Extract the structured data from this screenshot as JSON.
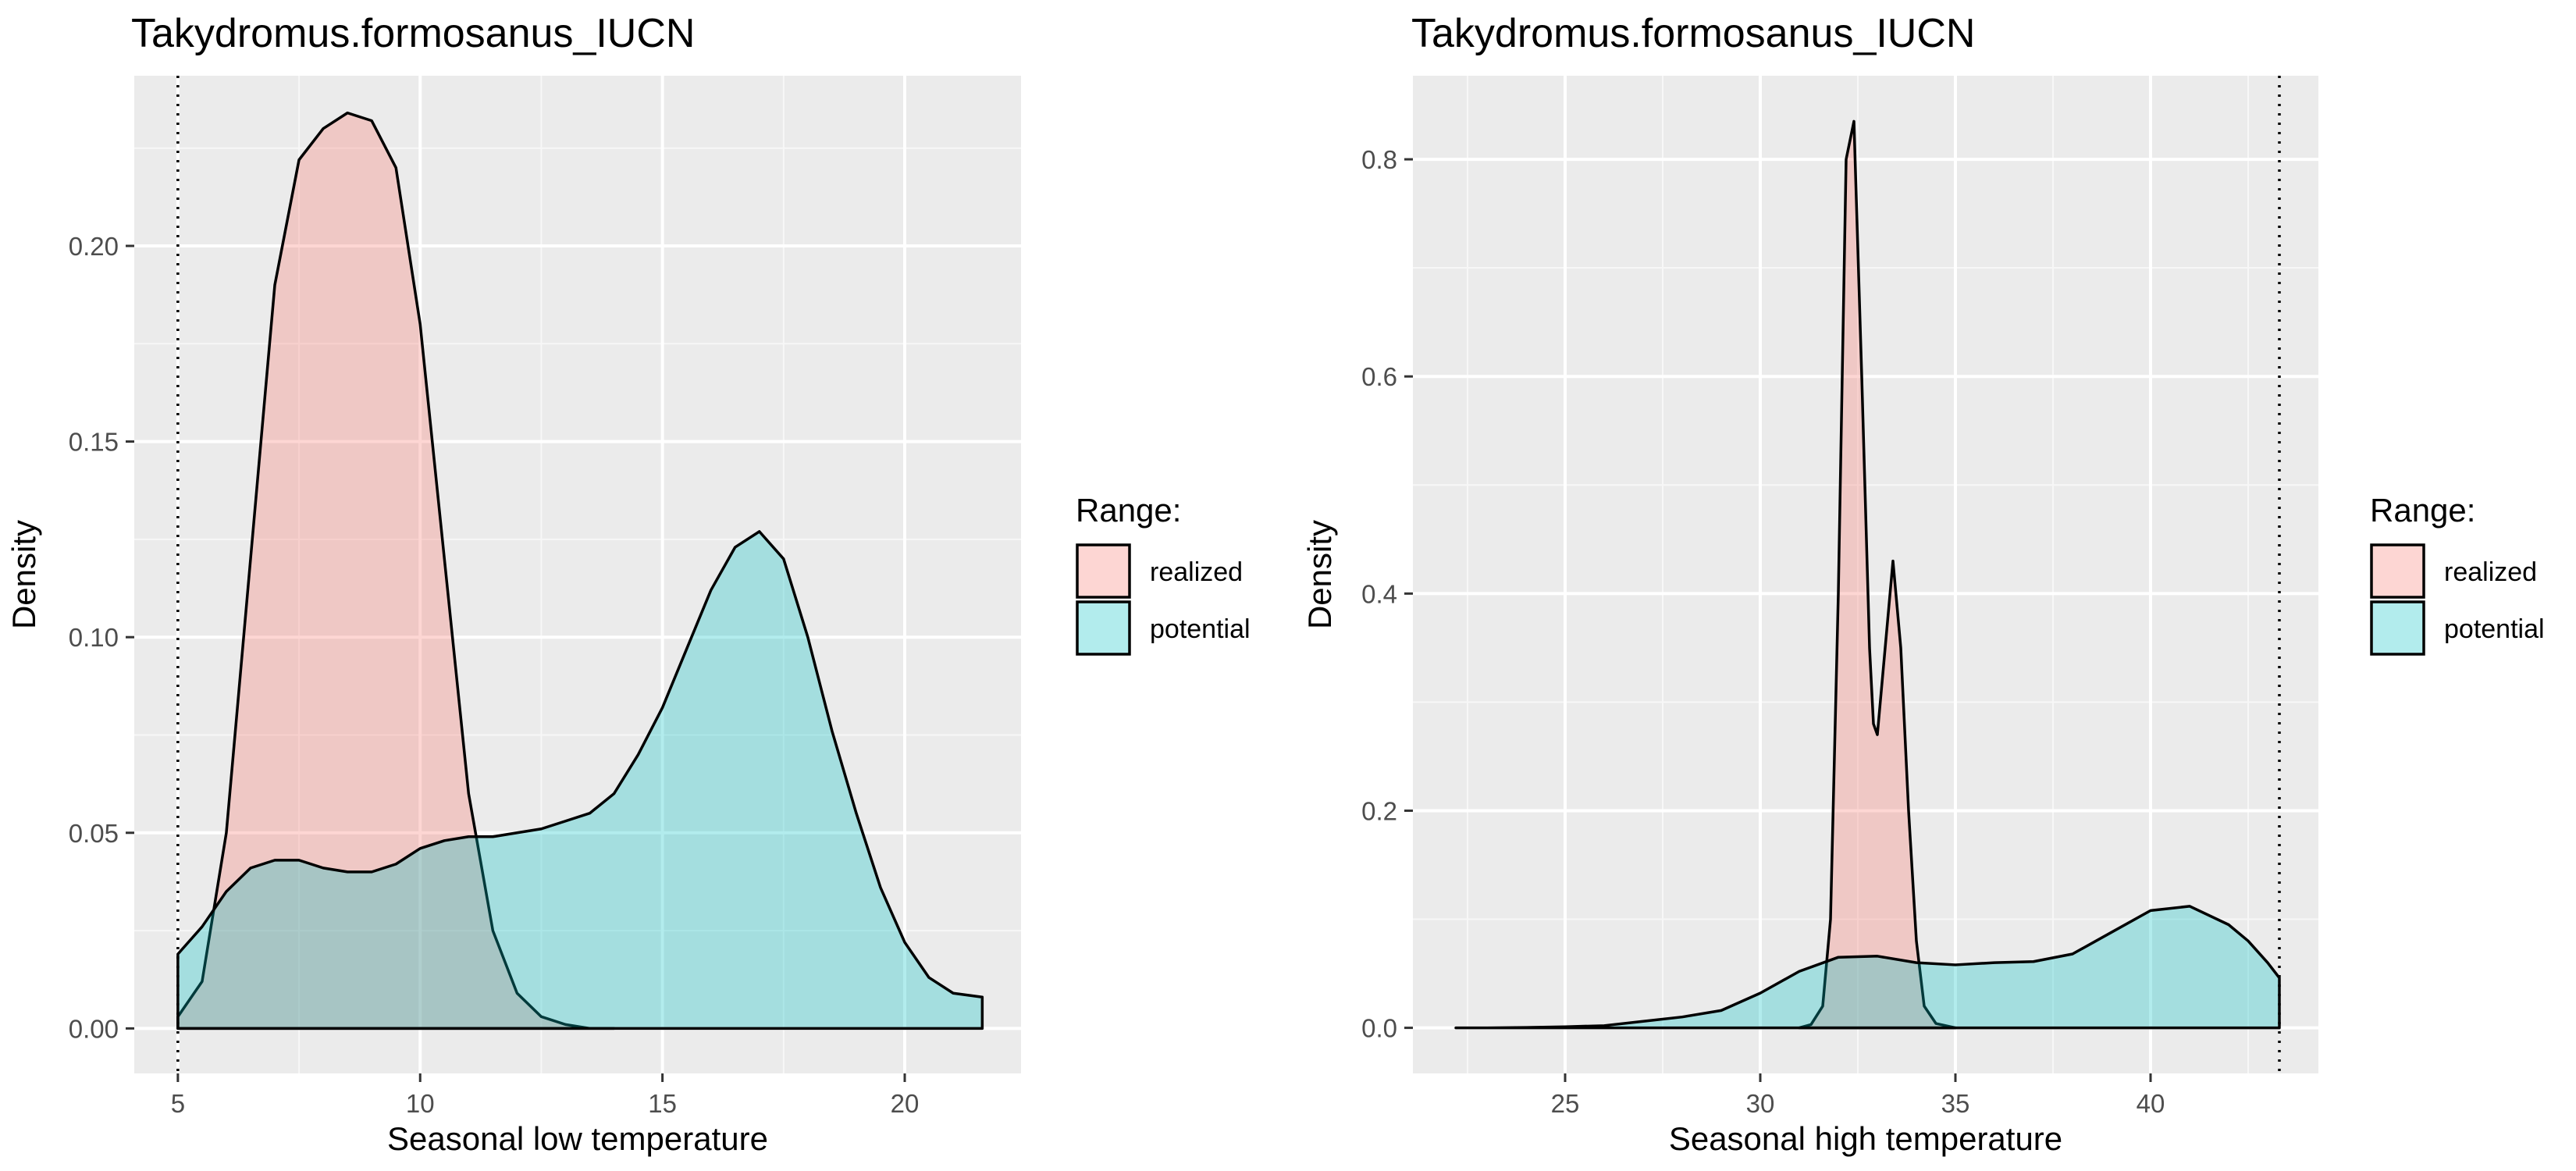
{
  "chart_data": [
    {
      "type": "area",
      "title": "Takydromus.formosanus_IUCN",
      "xlabel": "Seasonal low temperature",
      "ylabel": "Density",
      "xlim": [
        4.1,
        22.4
      ],
      "ylim": [
        -0.0115,
        0.2435
      ],
      "xticks": [
        5,
        10,
        15,
        20
      ],
      "yticks": [
        0.0,
        0.05,
        0.1,
        0.15,
        0.2
      ],
      "xtick_labels": [
        "5",
        "10",
        "15",
        "20"
      ],
      "ytick_labels": [
        "0.00",
        "0.05",
        "0.10",
        "0.15",
        "0.20"
      ],
      "vline": 5.0,
      "grid": true,
      "legend": {
        "title": "Range:",
        "position": "right"
      },
      "series": [
        {
          "name": "realized",
          "color": "#F8766D",
          "x": [
            5.0,
            5.5,
            6.0,
            6.5,
            7.0,
            7.5,
            8.0,
            8.5,
            9.0,
            9.5,
            10.0,
            10.5,
            11.0,
            11.5,
            12.0,
            12.5,
            13.0,
            13.5,
            14.0
          ],
          "y": [
            0.003,
            0.012,
            0.05,
            0.12,
            0.19,
            0.222,
            0.23,
            0.234,
            0.232,
            0.22,
            0.18,
            0.12,
            0.06,
            0.025,
            0.009,
            0.003,
            0.001,
            0.0,
            0.0
          ]
        },
        {
          "name": "potential",
          "color": "#00BFC4",
          "x": [
            5.0,
            5.5,
            6.0,
            6.5,
            7.0,
            7.5,
            8.0,
            8.5,
            9.0,
            9.5,
            10.0,
            10.5,
            11.0,
            11.5,
            12.0,
            12.5,
            13.0,
            13.5,
            14.0,
            14.5,
            15.0,
            15.5,
            16.0,
            16.5,
            17.0,
            17.5,
            18.0,
            18.5,
            19.0,
            19.5,
            20.0,
            20.5,
            21.0,
            21.6
          ],
          "y": [
            0.019,
            0.026,
            0.035,
            0.041,
            0.043,
            0.043,
            0.041,
            0.04,
            0.04,
            0.042,
            0.046,
            0.048,
            0.049,
            0.049,
            0.05,
            0.051,
            0.053,
            0.055,
            0.06,
            0.07,
            0.082,
            0.097,
            0.112,
            0.123,
            0.127,
            0.12,
            0.1,
            0.076,
            0.055,
            0.036,
            0.022,
            0.013,
            0.009,
            0.008
          ]
        }
      ]
    },
    {
      "type": "area",
      "title": "Takydromus.formosanus_IUCN",
      "xlabel": "Seasonal high temperature",
      "ylabel": "Density",
      "xlim": [
        21.1,
        44.3
      ],
      "ylim": [
        -0.042,
        0.877
      ],
      "xticks": [
        25,
        30,
        35,
        40
      ],
      "yticks": [
        0.0,
        0.2,
        0.4,
        0.6,
        0.8
      ],
      "xtick_labels": [
        "25",
        "30",
        "35",
        "40"
      ],
      "ytick_labels": [
        "0.0",
        "0.2",
        "0.4",
        "0.6",
        "0.8"
      ],
      "vline": 43.3,
      "grid": true,
      "legend": {
        "title": "Range:",
        "position": "right"
      },
      "series": [
        {
          "name": "realized",
          "color": "#F8766D",
          "x": [
            31.0,
            31.3,
            31.6,
            31.8,
            32.0,
            32.2,
            32.4,
            32.6,
            32.8,
            32.9,
            33.0,
            33.2,
            33.4,
            33.6,
            33.8,
            34.0,
            34.2,
            34.5,
            35.0
          ],
          "y": [
            0.0,
            0.003,
            0.02,
            0.1,
            0.4,
            0.8,
            0.835,
            0.6,
            0.35,
            0.28,
            0.27,
            0.35,
            0.43,
            0.35,
            0.2,
            0.08,
            0.02,
            0.004,
            0.0
          ]
        },
        {
          "name": "potential",
          "color": "#00BFC4",
          "x": [
            22.2,
            23.0,
            24.0,
            25.0,
            26.0,
            27.0,
            28.0,
            29.0,
            30.0,
            31.0,
            32.0,
            33.0,
            34.0,
            35.0,
            36.0,
            37.0,
            38.0,
            39.0,
            40.0,
            41.0,
            42.0,
            42.5,
            43.0,
            43.3
          ],
          "y": [
            0.0,
            0.0,
            0.0003,
            0.001,
            0.002,
            0.006,
            0.01,
            0.016,
            0.032,
            0.052,
            0.065,
            0.066,
            0.06,
            0.058,
            0.06,
            0.061,
            0.068,
            0.088,
            0.108,
            0.112,
            0.095,
            0.08,
            0.06,
            0.046
          ]
        }
      ]
    }
  ]
}
